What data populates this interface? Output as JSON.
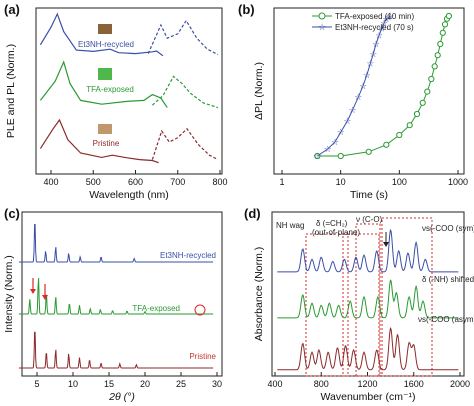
{
  "colors": {
    "blue": "#3a4fa8",
    "green": "#2a9a32",
    "red": "#8b2a2a",
    "dashred": "#d62b2b"
  },
  "panels": {
    "a": {
      "label": "(a)",
      "xlabel": "Wavelength (nm)",
      "ylabel": "PLE and PL (Norm.)",
      "xticks": [
        "400",
        "500",
        "600",
        "700",
        "800"
      ],
      "curve_labels": [
        "Et3NH-recycled",
        "TFA-exposed",
        "Pristine"
      ]
    },
    "b": {
      "label": "(b)",
      "xlabel": "Time (s)",
      "ylabel": "ΔPL (Norm.)",
      "xticks": [
        "1",
        "10",
        "100",
        "1000"
      ],
      "legend": [
        "TFA-exposed (10 min)",
        "Et3NH-recycled (70 s)"
      ]
    },
    "c": {
      "label": "(c)",
      "xlabel": "2θ (°)",
      "ylabel": "Intensity (Norm.)",
      "xticks": [
        "5",
        "10",
        "15",
        "20",
        "25",
        "30"
      ],
      "curve_labels": [
        "Et3NH-recycled",
        "TFA-exposed",
        "Pristine"
      ]
    },
    "d": {
      "label": "(d)",
      "xlabel": "Wavenumber (cm⁻¹)",
      "ylabel": "Absorbance (Norm.)",
      "xticks": [
        "400",
        "800",
        "1200",
        "1600",
        "2000"
      ],
      "annotations": [
        "NH wag",
        "δ (=CH₂)",
        "(out-of-plane)",
        "ν (C-O)",
        "νs(-COO (sym)",
        "δ (-NH) shifted",
        "νs(-COO (asym)"
      ]
    }
  },
  "chart_data": [
    {
      "panel": "a",
      "type": "line",
      "xlabel": "Wavelength (nm)",
      "ylabel": "PLE and PL (Norm.)",
      "xlim": [
        350,
        800
      ],
      "series": [
        {
          "name": "Et3NH-recycled",
          "x": [
            375,
            400,
            415,
            430,
            460,
            500,
            540,
            560,
            600,
            640,
            650,
            665
          ],
          "y": [
            0.3,
            0.7,
            1.0,
            0.6,
            0.18,
            0.15,
            0.2,
            0.12,
            0.1,
            0.14,
            0.16,
            0.05
          ]
        },
        {
          "name": "TFA-exposed",
          "x": [
            375,
            410,
            430,
            445,
            470,
            520,
            580,
            620,
            640,
            660,
            675
          ],
          "y": [
            0.2,
            0.6,
            1.0,
            0.55,
            0.2,
            0.12,
            0.18,
            0.2,
            0.32,
            0.25,
            0.05
          ]
        },
        {
          "name": "Pristine",
          "x": [
            375,
            405,
            420,
            440,
            470,
            520,
            545,
            580,
            610,
            640,
            655
          ],
          "y": [
            0.35,
            0.8,
            1.0,
            0.55,
            0.25,
            0.15,
            0.2,
            0.14,
            0.1,
            0.08,
            0.03
          ]
        }
      ]
    },
    {
      "panel": "b",
      "type": "scatter",
      "xlabel": "Time (s)",
      "ylabel": "ΔPL (Norm.)",
      "xscale": "log",
      "xlim": [
        1,
        1000
      ],
      "series": [
        {
          "name": "TFA-exposed (10 min)",
          "x": [
            4,
            10,
            30,
            60,
            100,
            150,
            200,
            250,
            300,
            350,
            400,
            450,
            500,
            550,
            600,
            650,
            700
          ],
          "y": [
            0.0,
            0.0,
            0.03,
            0.08,
            0.15,
            0.22,
            0.3,
            0.38,
            0.46,
            0.55,
            0.64,
            0.72,
            0.8,
            0.88,
            0.94,
            0.98,
            1.0
          ]
        },
        {
          "name": "Et3NH-recycled (70 s)",
          "x": [
            4,
            6,
            8,
            10,
            13,
            16,
            20,
            24,
            28,
            32,
            36,
            40,
            45,
            50,
            55,
            60,
            65,
            70
          ],
          "y": [
            0.0,
            0.05,
            0.1,
            0.17,
            0.25,
            0.33,
            0.42,
            0.5,
            0.58,
            0.66,
            0.73,
            0.8,
            0.86,
            0.91,
            0.95,
            0.98,
            0.99,
            1.0
          ]
        }
      ]
    },
    {
      "panel": "c",
      "type": "line",
      "xlabel": "2θ (°)",
      "ylabel": "Intensity (Norm.)",
      "xlim": [
        2,
        30
      ],
      "series": [
        {
          "name": "Et3NH-recycled",
          "peaks": [
            [
              4.7,
              1.0
            ],
            [
              6.2,
              0.25
            ],
            [
              7.6,
              0.35
            ],
            [
              9.4,
              0.2
            ],
            [
              11.0,
              0.12
            ],
            [
              13.9,
              0.12
            ],
            [
              18.5,
              0.08
            ]
          ]
        },
        {
          "name": "TFA-exposed",
          "peaks": [
            [
              4.0,
              0.35
            ],
            [
              5.2,
              0.85
            ],
            [
              6.3,
              0.5
            ],
            [
              7.6,
              0.4
            ],
            [
              9.5,
              0.25
            ],
            [
              10.9,
              0.2
            ],
            [
              12.4,
              0.12
            ],
            [
              13.8,
              0.1
            ],
            [
              15.5,
              0.08
            ],
            [
              17.5,
              0.07
            ],
            [
              20.0,
              0.06
            ]
          ]
        },
        {
          "name": "Pristine",
          "peaks": [
            [
              4.7,
              1.0
            ],
            [
              6.3,
              0.4
            ],
            [
              7.6,
              0.45
            ],
            [
              9.4,
              0.35
            ],
            [
              10.9,
              0.25
            ],
            [
              12.3,
              0.2
            ],
            [
              13.9,
              0.12
            ],
            [
              16.5,
              0.1
            ],
            [
              18.8,
              0.08
            ]
          ]
        }
      ]
    },
    {
      "panel": "d",
      "type": "line",
      "xlabel": "Wavenumber (cm⁻¹)",
      "ylabel": "Absorbance (Norm.)",
      "xlim": [
        400,
        2000
      ],
      "series": [
        {
          "name": "top (blue)",
          "peaks": [
            [
              640,
              0.55
            ],
            [
              720,
              0.3
            ],
            [
              800,
              0.35
            ],
            [
              900,
              0.25
            ],
            [
              1000,
              0.3
            ],
            [
              1100,
              0.35
            ],
            [
              1170,
              0.4
            ],
            [
              1280,
              0.5
            ],
            [
              1400,
              1.0
            ],
            [
              1470,
              0.5
            ],
            [
              1550,
              0.45
            ],
            [
              1620,
              0.7
            ],
            [
              1700,
              0.3
            ]
          ]
        },
        {
          "name": "middle (green)",
          "peaks": [
            [
              640,
              0.55
            ],
            [
              720,
              0.35
            ],
            [
              800,
              0.3
            ],
            [
              870,
              0.35
            ],
            [
              950,
              0.3
            ],
            [
              1050,
              0.4
            ],
            [
              1170,
              0.5
            ],
            [
              1290,
              0.5
            ],
            [
              1400,
              0.9
            ],
            [
              1450,
              0.6
            ],
            [
              1560,
              0.5
            ],
            [
              1620,
              0.75
            ],
            [
              1680,
              0.4
            ]
          ]
        },
        {
          "name": "bottom (red)",
          "peaks": [
            [
              640,
              0.6
            ],
            [
              720,
              0.4
            ],
            [
              780,
              0.45
            ],
            [
              860,
              0.4
            ],
            [
              940,
              0.5
            ],
            [
              1010,
              0.55
            ],
            [
              1080,
              0.45
            ],
            [
              1170,
              0.4
            ],
            [
              1280,
              0.45
            ],
            [
              1400,
              0.95
            ],
            [
              1460,
              0.8
            ],
            [
              1560,
              0.6
            ],
            [
              1600,
              0.55
            ]
          ]
        }
      ]
    }
  ]
}
